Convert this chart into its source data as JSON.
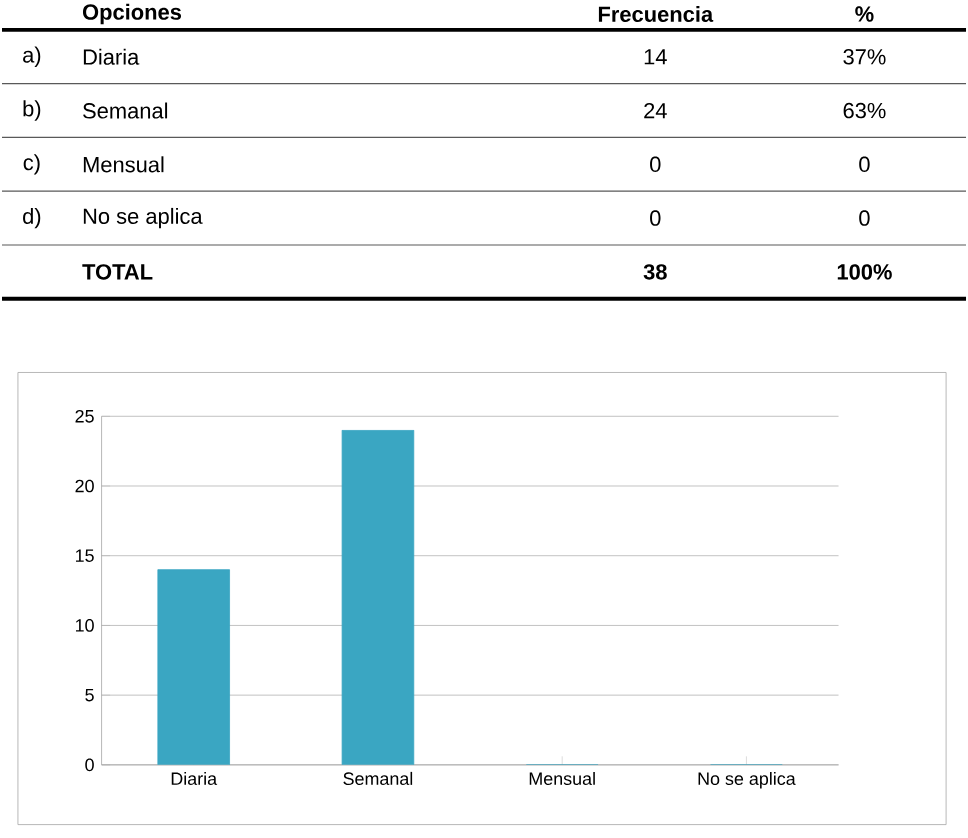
{
  "chart_data": [
    {
      "type": "other",
      "annotations": [
        "Opciones",
        "Frecuencia",
        "%",
        "a)",
        "Diaria",
        "14",
        "37%",
        "b)",
        "Semanal",
        "24",
        "63%",
        "c)",
        "Mensual",
        "0",
        "0",
        "d)",
        "No se aplica",
        "0",
        "0",
        "TOTAL",
        "38",
        "100%"
      ]
    },
    {
      "type": "bar",
      "categories": [
        "Diaria",
        "Semanal",
        "Mensual",
        "No se aplica"
      ],
      "values": [
        14,
        24,
        0,
        0
      ],
      "color": "#3aa6c2",
      "ylim": [
        0,
        25
      ],
      "yticks": [
        0,
        5,
        10,
        15,
        20,
        25
      ],
      "grid": "y"
    }
  ]
}
